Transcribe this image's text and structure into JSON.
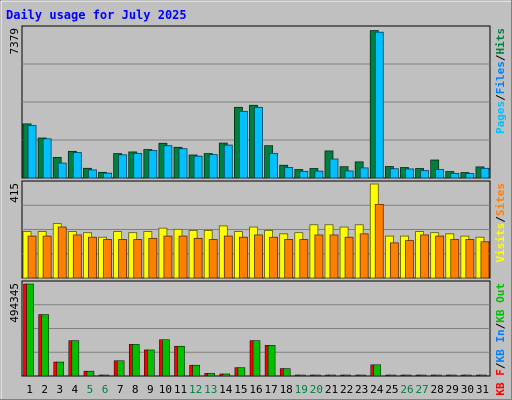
{
  "chart_data": {
    "type": "bar",
    "title": "Daily usage for July 2025",
    "categories": [
      "1",
      "2",
      "3",
      "4",
      "5",
      "6",
      "7",
      "8",
      "9",
      "10",
      "11",
      "12",
      "13",
      "14",
      "15",
      "16",
      "17",
      "18",
      "19",
      "20",
      "21",
      "22",
      "23",
      "24",
      "25",
      "26",
      "27",
      "28",
      "29",
      "30",
      "31"
    ],
    "weekend_days": [
      "5",
      "6",
      "12",
      "13",
      "19",
      "20",
      "26",
      "27"
    ],
    "panels": [
      {
        "id": "hits-files-pages",
        "max_label": "7379",
        "ylim": [
          0,
          7379
        ],
        "legend": [
          {
            "text": "Pages",
            "color": "#00c0ff"
          },
          {
            "text": "/",
            "color": "#000000"
          },
          {
            "text": "Files",
            "color": "#0080ff"
          },
          {
            "text": "/",
            "color": "#000000"
          },
          {
            "text": "Hits",
            "color": "#008040"
          }
        ],
        "series": [
          {
            "name": "Hits",
            "color": "#008040",
            "values": [
              2680,
              1980,
              1020,
              1320,
              480,
              280,
              1210,
              1290,
              1410,
              1720,
              1520,
              1140,
              1210,
              1730,
              3500,
              3600,
              1600,
              630,
              420,
              470,
              1340,
              560,
              800,
              7300,
              570,
              520,
              470,
              890,
              320,
              270,
              550
            ]
          },
          {
            "name": "Pages",
            "color": "#00c0ff",
            "values": [
              2600,
              1940,
              740,
              1260,
              400,
              240,
              1150,
              1220,
              1360,
              1600,
              1450,
              1080,
              1160,
              1630,
              3300,
              3500,
              1220,
              520,
              330,
              340,
              940,
              350,
              500,
              7220,
              460,
              450,
              370,
              420,
              230,
              220,
              480
            ]
          }
        ]
      },
      {
        "id": "visits-sites",
        "max_label": "415",
        "ylim": [
          0,
          415
        ],
        "legend": [
          {
            "text": "Visits",
            "color": "#ffff00"
          },
          {
            "text": "/",
            "color": "#000000"
          },
          {
            "text": "Sites",
            "color": "#ff8000"
          }
        ],
        "series": [
          {
            "name": "Visits",
            "color": "#ffff00",
            "values": [
              205,
              205,
              240,
              205,
              200,
              180,
              205,
              200,
              205,
              220,
              215,
              210,
              210,
              230,
              205,
              225,
              210,
              195,
              200,
              235,
              235,
              225,
              235,
              415,
              185,
              185,
              205,
              200,
              195,
              185,
              180
            ]
          },
          {
            "name": "Sites",
            "color": "#ff8000",
            "values": [
              185,
              185,
              225,
              190,
              180,
              170,
              170,
              170,
              175,
              185,
              185,
              175,
              170,
              185,
              180,
              190,
              180,
              170,
              170,
              190,
              190,
              180,
              195,
              325,
              155,
              165,
              190,
              185,
              170,
              170,
              160
            ]
          }
        ]
      },
      {
        "id": "kbf-kbin-kbout",
        "max_label": "494345",
        "ylim": [
          0,
          494345
        ],
        "legend": [
          {
            "text": "KB F",
            "color": "#ff0000"
          },
          {
            "text": "/",
            "color": "#000000"
          },
          {
            "text": "KB In",
            "color": "#0080ff"
          },
          {
            "text": "/",
            "color": "#000000"
          },
          {
            "text": "KB Out",
            "color": "#00c000"
          }
        ],
        "series": [
          {
            "name": "KB F",
            "color": "#00c000",
            "values": [
              494345,
              330000,
              75000,
              190000,
              26000,
              4000,
              82000,
              170000,
              140000,
              195000,
              160000,
              58000,
              14000,
              11000,
              45000,
              190000,
              165000,
              40000,
              2000,
              2000,
              2000,
              2000,
              2000,
              60000,
              2000,
              2000,
              2000,
              2000,
              2000,
              2000,
              2000
            ]
          }
        ]
      }
    ]
  }
}
